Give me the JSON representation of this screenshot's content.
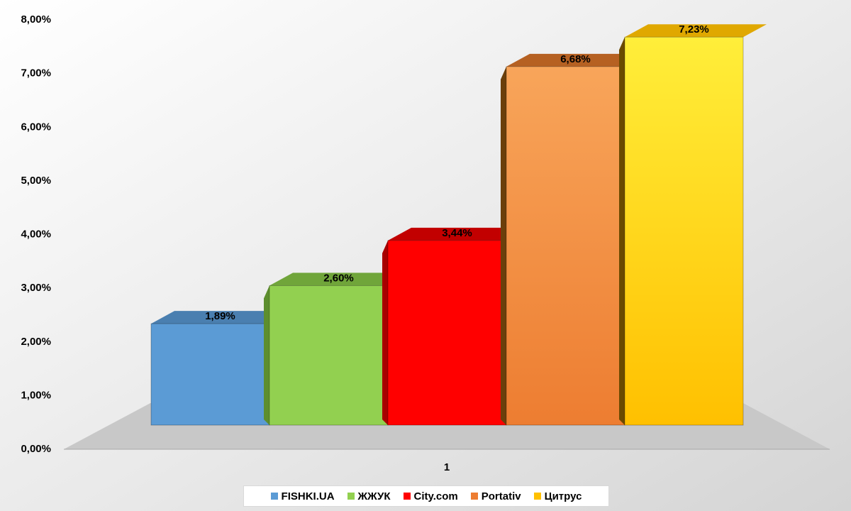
{
  "chart_data": {
    "type": "bar",
    "categories": [
      "1"
    ],
    "series": [
      {
        "name": "FISHKI.UA",
        "values": [
          0.0189
        ],
        "label": "1,89%",
        "color": "#5b9bd5"
      },
      {
        "name": "ЖЖУК",
        "values": [
          0.026
        ],
        "label": "2,60%",
        "color": "#92d050"
      },
      {
        "name": "City.com",
        "values": [
          0.0344
        ],
        "label": "3,44%",
        "color": "#ff0000"
      },
      {
        "name": "Portativ",
        "values": [
          0.0668
        ],
        "label": "6,68%",
        "color": "#ed7d31"
      },
      {
        "name": "Цитрус",
        "values": [
          0.0723
        ],
        "label": "7,23%",
        "color": "#ffc000"
      }
    ],
    "ylim": [
      0,
      0.08
    ],
    "y_ticks": [
      "0,00%",
      "1,00%",
      "2,00%",
      "3,00%",
      "4,00%",
      "5,00%",
      "6,00%",
      "7,00%",
      "8,00%"
    ],
    "legend_position": "bottom",
    "style": "3d-clustered-column"
  }
}
